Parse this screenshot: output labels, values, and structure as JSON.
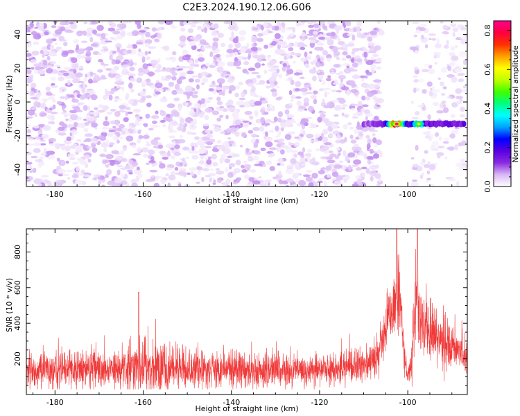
{
  "figure_title": "C2E3.2024.190.12.06.G06",
  "chart_data": [
    {
      "type": "heatmap",
      "title": "",
      "xlabel": "Height of straight line (km)",
      "ylabel": "Frequency (Hz)",
      "xlim": [
        -186.5,
        -86.5
      ],
      "ylim": [
        -50,
        48
      ],
      "x_ticks": [
        -180,
        -160,
        -140,
        -120,
        -100
      ],
      "x_tick_labels": [
        "-180",
        "-160",
        "-140",
        "-120",
        "-100"
      ],
      "y_ticks": [
        -40,
        -20,
        0,
        20,
        40
      ],
      "y_tick_labels": [
        "-40",
        "-20",
        "0",
        "20",
        "40"
      ],
      "colorbar": {
        "label": "Normalized spectral amplitude",
        "range": [
          0,
          0.85
        ],
        "ticks": [
          0,
          0.2,
          0.4,
          0.6,
          0.8
        ],
        "tick_labels": [
          "0.0",
          "0.2",
          "0.4",
          "0.6",
          "0.8"
        ],
        "colormap": [
          "#ffffff",
          "#d9b8f5",
          "#8a2be2",
          "#5a00e0",
          "#0000ff",
          "#00a0ff",
          "#00ffff",
          "#00ff80",
          "#40ff00",
          "#c0ff00",
          "#ffff00",
          "#ffa000",
          "#ff3000",
          "#ff0040",
          "#ff0090"
        ]
      },
      "background_noise": {
        "x_range": [
          -186.5,
          -106.5
        ],
        "typical_amplitude": 0.05,
        "max_amplitude": 0.1
      },
      "gap": {
        "x_range": [
          -106,
          -99
        ]
      },
      "signal": {
        "frequency": -13,
        "x_range": [
          -110,
          -87
        ],
        "peak_x": -102.5,
        "peak_amplitude": 0.85,
        "secondary_peak_x": -97.5,
        "secondary_peak_amplitude": 0.6
      }
    },
    {
      "type": "line",
      "title": "",
      "xlabel": "Height of straight line (km)",
      "ylabel": "SNR (10 * v/v)",
      "xlim": [
        -186.5,
        -86.5
      ],
      "ylim": [
        0,
        930
      ],
      "x_ticks": [
        -180,
        -160,
        -140,
        -120,
        -100
      ],
      "x_tick_labels": [
        "-180",
        "-160",
        "-140",
        "-120",
        "-100"
      ],
      "y_ticks": [
        200,
        400,
        600,
        800
      ],
      "y_tick_labels": [
        "200",
        "400",
        "600",
        "800"
      ],
      "color": "#f03a3a",
      "series_profile": {
        "x": [
          -186.5,
          -175,
          -165,
          -160,
          -150,
          -140,
          -130,
          -120,
          -110,
          -107,
          -105,
          -104,
          -103,
          -102.5,
          -101.5,
          -101,
          -100.5,
          -100,
          -99,
          -98.5,
          -98,
          -97.5,
          -97,
          -96,
          -94,
          -92,
          -90,
          -88,
          -86.5
        ],
        "mean": [
          140,
          140,
          150,
          160,
          150,
          140,
          140,
          140,
          160,
          210,
          350,
          470,
          540,
          560,
          480,
          300,
          150,
          90,
          220,
          400,
          560,
          530,
          430,
          380,
          330,
          300,
          260,
          230,
          200
        ],
        "noise": [
          70,
          70,
          90,
          110,
          80,
          70,
          70,
          60,
          70,
          90,
          110,
          120,
          130,
          150,
          120,
          100,
          60,
          40,
          110,
          170,
          170,
          150,
          130,
          120,
          110,
          100,
          90,
          80,
          70
        ]
      },
      "peaks": [
        {
          "x": -161,
          "y": 575
        },
        {
          "x": -102.5,
          "y": 930
        },
        {
          "x": -97.8,
          "y": 930
        }
      ]
    }
  ]
}
